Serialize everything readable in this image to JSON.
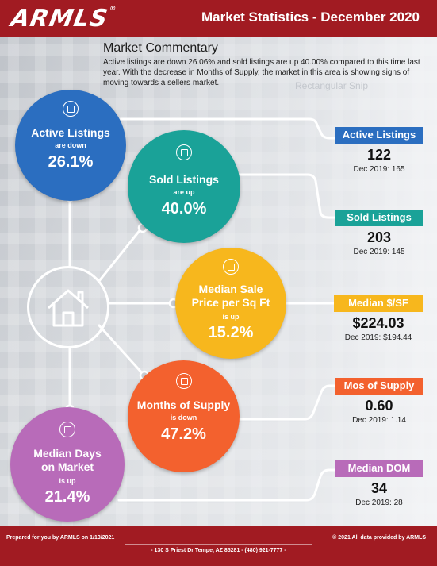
{
  "header": {
    "logo_text": "ARMLS",
    "logo_mark": "®",
    "title": "Market Statistics - December 2020"
  },
  "commentary": {
    "heading": "Market Commentary",
    "body": "Active listings are down 26.06% and sold listings are up 40.00% compared to this time last year. With the decrease in Months of Supply, the market in this area is showing signs of moving towards a sellers market.",
    "overlay": "Rectangular Snip"
  },
  "metrics": [
    {
      "title": "Active Listings",
      "direction": "are down",
      "change": "26.1%",
      "tag": "Active Listings",
      "value": "122",
      "previous": "Dec 2019: 165",
      "color": "#2b6ec0",
      "icon": "house-search-icon"
    },
    {
      "title": "Sold Listings",
      "direction": "are up",
      "change": "40.0%",
      "tag": "Sold Listings",
      "value": "203",
      "previous": "Dec 2019: 145",
      "color": "#1aa298",
      "icon": "sold-sign-icon"
    },
    {
      "title": "Median Sale Price per Sq Ft",
      "direction": "is up",
      "change": "15.2%",
      "tag": "Median $/SF",
      "value": "$224.03",
      "previous": "Dec 2019: $194.44",
      "color": "#f7b71d",
      "icon": "money-bag-icon"
    },
    {
      "title": "Months of Supply",
      "direction": "is down",
      "change": "47.2%",
      "tag": "Mos of Supply",
      "value": "0.60",
      "previous": "Dec 2019: 1.14",
      "color": "#f3612e",
      "icon": "chart-icon"
    },
    {
      "title": "Median Days on Market",
      "direction": "is up",
      "change": "21.4%",
      "tag": "Median DOM",
      "value": "34",
      "previous": "Dec 2019: 28",
      "color": "#b86bb9",
      "icon": "calendar-icon"
    }
  ],
  "footer": {
    "prepared": "Prepared for you by ARMLS on 1/13/2021",
    "copyright": "© 2021 All data provided by ARMLS",
    "address": "- 130 S Priest Dr Tempe, AZ 85281 - (480) 921-7777 -"
  }
}
